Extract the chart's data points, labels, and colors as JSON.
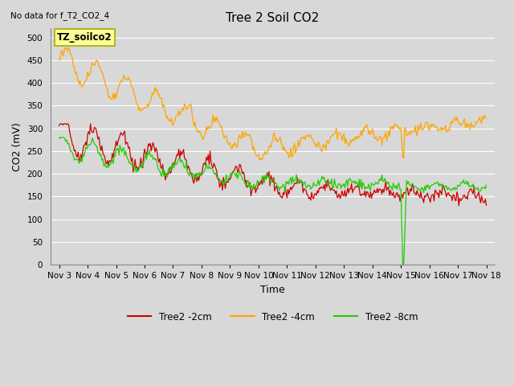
{
  "title": "Tree 2 Soil CO2",
  "subtitle": "No data for f_T2_CO2_4",
  "xlabel": "Time",
  "ylabel": "CO2 (mV)",
  "ylim": [
    0,
    520
  ],
  "yticks": [
    0,
    50,
    100,
    150,
    200,
    250,
    300,
    350,
    400,
    450,
    500
  ],
  "bg_color": "#d8d8d8",
  "plot_bg_color": "#d8d8d8",
  "grid_color": "#ffffff",
  "annotation_text": "TZ_soilco2",
  "annotation_box_color": "#ffff99",
  "annotation_box_edge": "#aaaa00",
  "line_colors": {
    "2cm": "#cc0000",
    "4cm": "#ffa500",
    "8cm": "#22cc00"
  },
  "xtick_labels": [
    "Nov 3",
    "Nov 4",
    "Nov 5",
    "Nov 6",
    "Nov 7",
    "Nov 8",
    "Nov 9",
    "Nov 10",
    "Nov 11",
    "Nov 12",
    "Nov 13",
    "Nov 14",
    "Nov 15",
    "Nov 16",
    "Nov 17",
    "Nov 18"
  ],
  "legend_labels": [
    "Tree2 -2cm",
    "Tree2 -4cm",
    "Tree2 -8cm"
  ]
}
